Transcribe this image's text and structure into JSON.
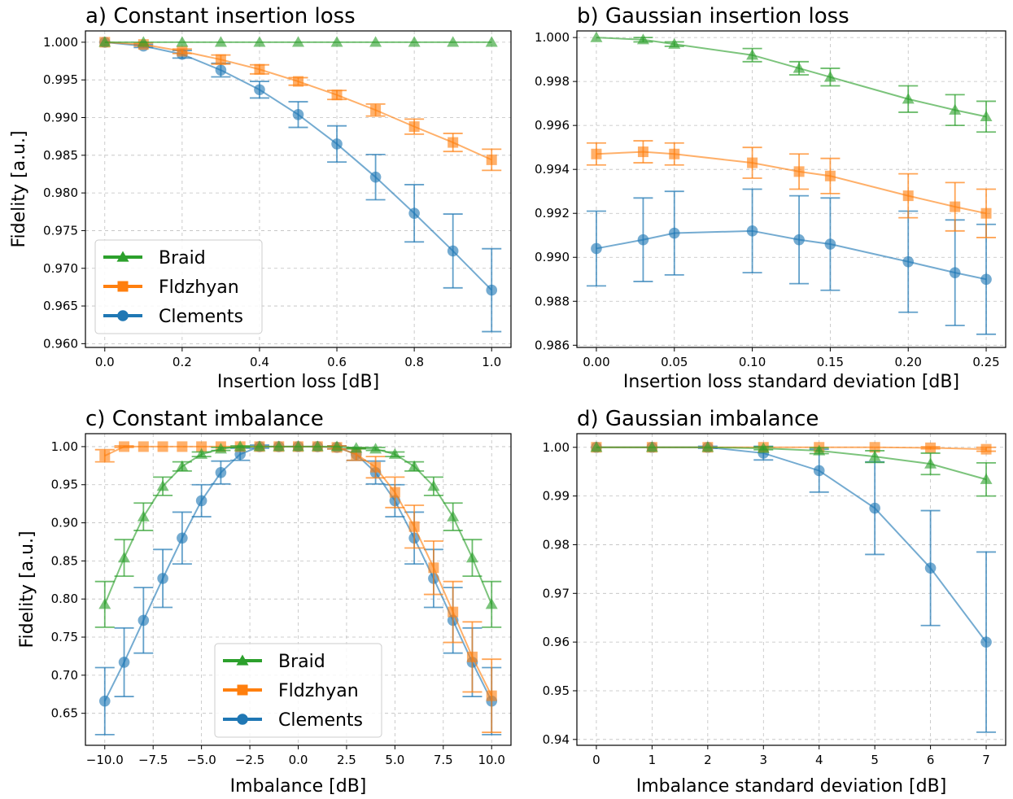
{
  "colors": {
    "braid": "#2ca02c",
    "fldzhyan": "#ff7f0e",
    "clements": "#1f77b4"
  },
  "chart_data": [
    {
      "type": "line",
      "title": "a) Constant insertion loss",
      "xlabel": "Insertion loss [dB]",
      "ylabel": "Fidelity [a.u.]",
      "xlim": [
        -0.05,
        1.05
      ],
      "ylim": [
        0.9595,
        1.0015
      ],
      "xticks": [
        0.0,
        0.2,
        0.4,
        0.6,
        0.8,
        1.0
      ],
      "xtick_labels": [
        "0.0",
        "0.2",
        "0.4",
        "0.6",
        "0.8",
        "1.0"
      ],
      "yticks": [
        0.96,
        0.965,
        0.97,
        0.975,
        0.98,
        0.985,
        0.99,
        0.995,
        1.0
      ],
      "ytick_labels": [
        "0.960",
        "0.965",
        "0.970",
        "0.975",
        "0.980",
        "0.985",
        "0.990",
        "0.995",
        "1.000"
      ],
      "grid": true,
      "legend": "lower-left",
      "x": [
        0.0,
        0.1,
        0.2,
        0.3,
        0.4,
        0.5,
        0.6,
        0.7,
        0.8,
        0.9,
        1.0
      ],
      "series": [
        {
          "name": "Braid",
          "key": "braid",
          "marker": "triangle",
          "values": [
            1.0,
            1.0,
            1.0,
            1.0,
            1.0,
            1.0,
            1.0,
            1.0,
            1.0,
            1.0,
            1.0
          ],
          "errors": [
            0,
            0,
            0,
            0,
            0,
            0,
            0,
            0,
            0,
            0,
            0
          ]
        },
        {
          "name": "Fldzhyan",
          "key": "fldzhyan",
          "marker": "square",
          "values": [
            1.0,
            0.9997,
            0.9988,
            0.9977,
            0.9964,
            0.9948,
            0.993,
            0.991,
            0.9888,
            0.9867,
            0.9844
          ],
          "errors": [
            0,
            0.0002,
            0.0003,
            0.0006,
            0.0006,
            0.0005,
            0.0006,
            0.0008,
            0.001,
            0.0012,
            0.0014
          ]
        },
        {
          "name": "Clements",
          "key": "clements",
          "marker": "circle",
          "values": [
            1.0,
            0.9995,
            0.9984,
            0.9963,
            0.9937,
            0.9904,
            0.9865,
            0.9821,
            0.9773,
            0.9723,
            0.9671
          ],
          "errors": [
            0,
            0.0002,
            0.0005,
            0.0009,
            0.0011,
            0.0017,
            0.0024,
            0.003,
            0.0038,
            0.0049,
            0.0055
          ]
        }
      ]
    },
    {
      "type": "line",
      "title": "b) Gaussian insertion loss",
      "xlabel": "Insertion loss standard deviation [dB]",
      "ylabel": "",
      "xlim": [
        -0.0125,
        0.2625
      ],
      "ylim": [
        0.9859,
        1.0003
      ],
      "xticks": [
        0.0,
        0.05,
        0.1,
        0.15,
        0.2,
        0.25
      ],
      "xtick_labels": [
        "0.00",
        "0.05",
        "0.10",
        "0.15",
        "0.20",
        "0.25"
      ],
      "yticks": [
        0.986,
        0.988,
        0.99,
        0.992,
        0.994,
        0.996,
        0.998,
        1.0
      ],
      "ytick_labels": [
        "0.986",
        "0.988",
        "0.990",
        "0.992",
        "0.994",
        "0.996",
        "0.998",
        "1.000"
      ],
      "grid": true,
      "legend": "",
      "x": [
        0.0,
        0.03,
        0.05,
        0.1,
        0.13,
        0.15,
        0.2,
        0.23,
        0.25
      ],
      "series": [
        {
          "name": "Braid",
          "key": "braid",
          "marker": "triangle",
          "values": [
            1.0,
            0.9999,
            0.9997,
            0.9992,
            0.9986,
            0.9982,
            0.9972,
            0.9967,
            0.9964
          ],
          "errors": [
            0,
            0.0001,
            0.0001,
            0.0003,
            0.0003,
            0.0004,
            0.0006,
            0.0007,
            0.0007
          ]
        },
        {
          "name": "Fldzhyan",
          "key": "fldzhyan",
          "marker": "square",
          "values": [
            0.9947,
            0.9948,
            0.9947,
            0.9943,
            0.9939,
            0.9937,
            0.9928,
            0.9923,
            0.992
          ],
          "errors": [
            0.0005,
            0.0005,
            0.0005,
            0.0007,
            0.0008,
            0.0008,
            0.001,
            0.0011,
            0.0011
          ]
        },
        {
          "name": "Clements",
          "key": "clements",
          "marker": "circle",
          "values": [
            0.9904,
            0.9908,
            0.9911,
            0.9912,
            0.9908,
            0.9906,
            0.9898,
            0.9893,
            0.989
          ],
          "errors": [
            0.0017,
            0.0019,
            0.0019,
            0.0019,
            0.002,
            0.0021,
            0.0023,
            0.0024,
            0.0025
          ]
        }
      ]
    },
    {
      "type": "line",
      "title": "c) Constant imbalance",
      "xlabel": "Imbalance [dB]",
      "ylabel": "Fidelity [a.u.]",
      "xlim": [
        -11,
        11
      ],
      "ylim": [
        0.608,
        1.017
      ],
      "xticks": [
        -10,
        -7.5,
        -5,
        -2.5,
        0,
        2.5,
        5,
        7.5,
        10
      ],
      "xtick_labels": [
        "−10.0",
        "−7.5",
        "−5.0",
        "−2.5",
        "0.0",
        "2.5",
        "5.0",
        "7.5",
        "10.0"
      ],
      "yticks": [
        0.65,
        0.7,
        0.75,
        0.8,
        0.85,
        0.9,
        0.95,
        1.0
      ],
      "ytick_labels": [
        "0.65",
        "0.70",
        "0.75",
        "0.80",
        "0.85",
        "0.90",
        "0.95",
        "1.00"
      ],
      "grid": true,
      "legend": "lower-center",
      "x": [
        -10,
        -9,
        -8,
        -7,
        -6,
        -5,
        -4,
        -3,
        -2,
        -1,
        0,
        1,
        2,
        3,
        4,
        5,
        6,
        7,
        8,
        9,
        10
      ],
      "series": [
        {
          "name": "Braid",
          "key": "braid",
          "marker": "triangle",
          "values": [
            0.793,
            0.854,
            0.908,
            0.948,
            0.974,
            0.99,
            0.997,
            1.0,
            1.0,
            1.0,
            1.0,
            1.0,
            1.0,
            0.998,
            0.997,
            0.99,
            0.974,
            0.948,
            0.908,
            0.854,
            0.793
          ],
          "errors": [
            0.03,
            0.024,
            0.018,
            0.012,
            0.006,
            0.003,
            0.002,
            0.001,
            0.0,
            0.0,
            0.0,
            0.0,
            0.0,
            0.001,
            0.002,
            0.003,
            0.006,
            0.012,
            0.018,
            0.024,
            0.03
          ]
        },
        {
          "name": "Fldzhyan",
          "key": "fldzhyan",
          "marker": "square",
          "values": [
            0.988,
            1.0,
            1.0,
            1.0,
            1.0,
            1.0,
            1.0,
            1.0,
            1.0,
            1.0,
            1.0,
            1.0,
            0.999,
            0.99,
            0.973,
            0.94,
            0.895,
            0.841,
            0.783,
            0.724,
            0.673
          ],
          "errors": [
            0.008,
            0.001,
            0.0,
            0.0,
            0.0,
            0.0,
            0.0,
            0.0,
            0.0,
            0.0,
            0.0,
            0.0,
            0.002,
            0.008,
            0.014,
            0.02,
            0.028,
            0.035,
            0.04,
            0.046,
            0.048
          ]
        },
        {
          "name": "Clements",
          "key": "clements",
          "marker": "circle",
          "values": [
            0.666,
            0.717,
            0.772,
            0.827,
            0.88,
            0.929,
            0.966,
            0.99,
            1.0,
            1.0,
            1.0,
            1.0,
            0.999,
            0.99,
            0.966,
            0.929,
            0.88,
            0.827,
            0.772,
            0.717,
            0.666
          ],
          "errors": [
            0.044,
            0.045,
            0.043,
            0.038,
            0.034,
            0.021,
            0.015,
            0.008,
            0.002,
            0.0,
            0.0,
            0.0,
            0.002,
            0.008,
            0.015,
            0.021,
            0.034,
            0.038,
            0.043,
            0.045,
            0.044
          ]
        }
      ]
    },
    {
      "type": "line",
      "title": "d) Gaussian imbalance",
      "xlabel": "Imbalance standard deviation [dB]",
      "ylabel": "",
      "xlim": [
        -0.35,
        7.35
      ],
      "ylim": [
        0.9388,
        1.0028
      ],
      "xticks": [
        0,
        1,
        2,
        3,
        4,
        5,
        6,
        7
      ],
      "xtick_labels": [
        "0",
        "1",
        "2",
        "3",
        "4",
        "5",
        "6",
        "7"
      ],
      "yticks": [
        0.94,
        0.95,
        0.96,
        0.97,
        0.98,
        0.99,
        1.0
      ],
      "ytick_labels": [
        "0.94",
        "0.95",
        "0.96",
        "0.97",
        "0.98",
        "0.99",
        "1.00"
      ],
      "grid": true,
      "legend": "",
      "x": [
        0,
        1,
        2,
        3,
        4,
        5,
        6,
        7
      ],
      "series": [
        {
          "name": "Braid",
          "key": "braid",
          "marker": "triangle",
          "values": [
            1.0,
            1.0,
            1.0,
            0.9998,
            0.9993,
            0.9981,
            0.9966,
            0.9934
          ],
          "errors": [
            0,
            0,
            0,
            0.0003,
            0.0006,
            0.0012,
            0.0022,
            0.0034
          ]
        },
        {
          "name": "Fldzhyan",
          "key": "fldzhyan",
          "marker": "square",
          "values": [
            1.0,
            1.0,
            1.0,
            1.0,
            1.0,
            1.0,
            0.9999,
            0.9996
          ],
          "errors": [
            0,
            0,
            0,
            0,
            0,
            0,
            0.0002,
            0.0004
          ]
        },
        {
          "name": "Clements",
          "key": "clements",
          "marker": "circle",
          "values": [
            1.0,
            1.0,
            1.0,
            0.9988,
            0.9952,
            0.9875,
            0.9752,
            0.96
          ],
          "errors": [
            0,
            0,
            0.0002,
            0.0014,
            0.0044,
            0.0095,
            0.0118,
            0.0185
          ]
        }
      ]
    }
  ],
  "panels_layout_note": ""
}
